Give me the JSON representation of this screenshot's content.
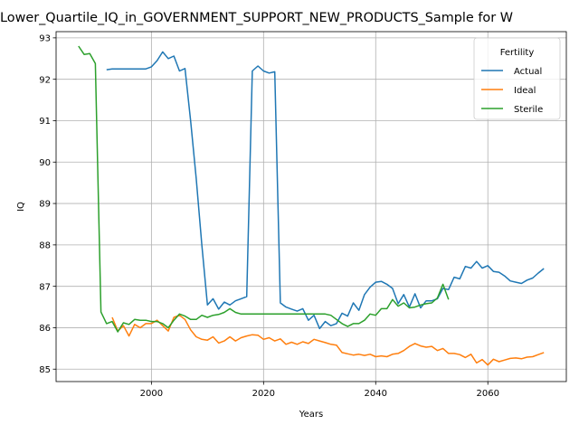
{
  "chart_data": {
    "type": "line",
    "title": "Lower_Quartile_IQ_in_GOVERNMENT_SUPPORT_NEW_PRODUCTS_Sample for W",
    "xlabel": "Years",
    "ylabel": "IQ",
    "xlim": [
      1983,
      2074
    ],
    "ylim": [
      84.7,
      93.15
    ],
    "x_ticks": [
      2000,
      2020,
      2040,
      2060
    ],
    "y_ticks": [
      85,
      86,
      87,
      88,
      89,
      90,
      91,
      92,
      93
    ],
    "grid": true,
    "legend": {
      "title": "Fertility",
      "placement": "top-right"
    },
    "series": [
      {
        "name": "Actual",
        "color": "#1f77b4",
        "points": [
          [
            1992,
            92.23
          ],
          [
            1993,
            92.25
          ],
          [
            1994,
            92.25
          ],
          [
            1995,
            92.25
          ],
          [
            1996,
            92.25
          ],
          [
            1997,
            92.25
          ],
          [
            1998,
            92.25
          ],
          [
            1999,
            92.25
          ],
          [
            2000,
            92.3
          ],
          [
            2001,
            92.45
          ],
          [
            2002,
            92.66
          ],
          [
            2003,
            92.5
          ],
          [
            2004,
            92.56
          ],
          [
            2005,
            92.2
          ],
          [
            2006,
            92.26
          ],
          [
            2007,
            91.0
          ],
          [
            2008,
            89.6
          ],
          [
            2009,
            88.0
          ],
          [
            2010,
            86.55
          ],
          [
            2011,
            86.7
          ],
          [
            2012,
            86.45
          ],
          [
            2013,
            86.62
          ],
          [
            2014,
            86.55
          ],
          [
            2015,
            86.65
          ],
          [
            2016,
            86.7
          ],
          [
            2017,
            86.75
          ],
          [
            2018,
            92.2
          ],
          [
            2019,
            92.32
          ],
          [
            2020,
            92.2
          ],
          [
            2021,
            92.15
          ],
          [
            2022,
            92.18
          ],
          [
            2023,
            86.6
          ],
          [
            2024,
            86.5
          ],
          [
            2025,
            86.45
          ],
          [
            2026,
            86.4
          ],
          [
            2027,
            86.46
          ],
          [
            2028,
            86.18
          ],
          [
            2029,
            86.3
          ],
          [
            2030,
            85.98
          ],
          [
            2031,
            86.15
          ],
          [
            2032,
            86.05
          ],
          [
            2033,
            86.1
          ],
          [
            2034,
            86.35
          ],
          [
            2035,
            86.28
          ],
          [
            2036,
            86.6
          ],
          [
            2037,
            86.42
          ],
          [
            2038,
            86.8
          ],
          [
            2039,
            86.98
          ],
          [
            2040,
            87.1
          ],
          [
            2041,
            87.12
          ],
          [
            2042,
            87.05
          ],
          [
            2043,
            86.95
          ],
          [
            2044,
            86.58
          ],
          [
            2045,
            86.8
          ],
          [
            2046,
            86.5
          ],
          [
            2047,
            86.82
          ],
          [
            2048,
            86.48
          ],
          [
            2049,
            86.65
          ],
          [
            2050,
            86.65
          ],
          [
            2051,
            86.7
          ],
          [
            2052,
            86.95
          ],
          [
            2053,
            86.92
          ],
          [
            2054,
            87.22
          ],
          [
            2055,
            87.18
          ],
          [
            2056,
            87.48
          ],
          [
            2057,
            87.44
          ],
          [
            2058,
            87.6
          ],
          [
            2059,
            87.44
          ],
          [
            2060,
            87.5
          ],
          [
            2061,
            87.36
          ],
          [
            2062,
            87.34
          ],
          [
            2063,
            87.25
          ],
          [
            2064,
            87.13
          ],
          [
            2065,
            87.1
          ],
          [
            2066,
            87.07
          ],
          [
            2067,
            87.15
          ],
          [
            2068,
            87.2
          ],
          [
            2069,
            87.32
          ],
          [
            2070,
            87.43
          ]
        ]
      },
      {
        "name": "Ideal",
        "color": "#ff7f0e",
        "points": [
          [
            1993,
            86.25
          ],
          [
            1994,
            85.92
          ],
          [
            1995,
            86.05
          ],
          [
            1996,
            85.8
          ],
          [
            1997,
            86.08
          ],
          [
            1998,
            86.0
          ],
          [
            1999,
            86.1
          ],
          [
            2000,
            86.1
          ],
          [
            2001,
            86.18
          ],
          [
            2002,
            86.05
          ],
          [
            2003,
            85.92
          ],
          [
            2004,
            86.25
          ],
          [
            2005,
            86.3
          ],
          [
            2006,
            86.2
          ],
          [
            2007,
            85.95
          ],
          [
            2008,
            85.78
          ],
          [
            2009,
            85.72
          ],
          [
            2010,
            85.7
          ],
          [
            2011,
            85.78
          ],
          [
            2012,
            85.63
          ],
          [
            2013,
            85.68
          ],
          [
            2014,
            85.78
          ],
          [
            2015,
            85.68
          ],
          [
            2016,
            85.76
          ],
          [
            2017,
            85.8
          ],
          [
            2018,
            85.83
          ],
          [
            2019,
            85.82
          ],
          [
            2020,
            85.72
          ],
          [
            2021,
            85.76
          ],
          [
            2022,
            85.68
          ],
          [
            2023,
            85.73
          ],
          [
            2024,
            85.6
          ],
          [
            2025,
            85.65
          ],
          [
            2026,
            85.6
          ],
          [
            2027,
            85.66
          ],
          [
            2028,
            85.62
          ],
          [
            2029,
            85.72
          ],
          [
            2030,
            85.68
          ],
          [
            2031,
            85.64
          ],
          [
            2032,
            85.6
          ],
          [
            2033,
            85.58
          ],
          [
            2034,
            85.4
          ],
          [
            2035,
            85.37
          ],
          [
            2036,
            85.34
          ],
          [
            2037,
            85.36
          ],
          [
            2038,
            85.33
          ],
          [
            2039,
            85.36
          ],
          [
            2040,
            85.3
          ],
          [
            2041,
            85.32
          ],
          [
            2042,
            85.3
          ],
          [
            2043,
            85.36
          ],
          [
            2044,
            85.38
          ],
          [
            2045,
            85.45
          ],
          [
            2046,
            85.55
          ],
          [
            2047,
            85.62
          ],
          [
            2048,
            85.56
          ],
          [
            2049,
            85.53
          ],
          [
            2050,
            85.55
          ],
          [
            2051,
            85.45
          ],
          [
            2052,
            85.5
          ],
          [
            2053,
            85.38
          ],
          [
            2054,
            85.38
          ],
          [
            2055,
            85.35
          ],
          [
            2056,
            85.28
          ],
          [
            2057,
            85.36
          ],
          [
            2058,
            85.15
          ],
          [
            2059,
            85.23
          ],
          [
            2060,
            85.1
          ],
          [
            2061,
            85.24
          ],
          [
            2062,
            85.18
          ],
          [
            2063,
            85.22
          ],
          [
            2064,
            85.26
          ],
          [
            2065,
            85.27
          ],
          [
            2066,
            85.25
          ],
          [
            2067,
            85.29
          ],
          [
            2068,
            85.3
          ],
          [
            2069,
            85.35
          ],
          [
            2070,
            85.4
          ]
        ]
      },
      {
        "name": "Sterile",
        "color": "#2ca02c",
        "points": [
          [
            1987,
            92.8
          ],
          [
            1988,
            92.6
          ],
          [
            1989,
            92.62
          ],
          [
            1990,
            92.38
          ],
          [
            1991,
            86.38
          ],
          [
            1992,
            86.1
          ],
          [
            1993,
            86.15
          ],
          [
            1994,
            85.9
          ],
          [
            1995,
            86.12
          ],
          [
            1996,
            86.08
          ],
          [
            1997,
            86.2
          ],
          [
            1998,
            86.18
          ],
          [
            1999,
            86.18
          ],
          [
            2000,
            86.15
          ],
          [
            2001,
            86.15
          ],
          [
            2002,
            86.1
          ],
          [
            2003,
            86.0
          ],
          [
            2004,
            86.18
          ],
          [
            2005,
            86.33
          ],
          [
            2006,
            86.28
          ],
          [
            2007,
            86.2
          ],
          [
            2008,
            86.2
          ],
          [
            2009,
            86.3
          ],
          [
            2010,
            86.25
          ],
          [
            2011,
            86.3
          ],
          [
            2012,
            86.32
          ],
          [
            2013,
            86.37
          ],
          [
            2014,
            86.46
          ],
          [
            2015,
            86.37
          ],
          [
            2016,
            86.33
          ],
          [
            2017,
            86.33
          ],
          [
            2018,
            86.33
          ],
          [
            2019,
            86.33
          ],
          [
            2020,
            86.33
          ],
          [
            2021,
            86.33
          ],
          [
            2022,
            86.33
          ],
          [
            2023,
            86.33
          ],
          [
            2024,
            86.33
          ],
          [
            2025,
            86.33
          ],
          [
            2026,
            86.33
          ],
          [
            2027,
            86.33
          ],
          [
            2028,
            86.33
          ],
          [
            2029,
            86.33
          ],
          [
            2030,
            86.33
          ],
          [
            2031,
            86.33
          ],
          [
            2032,
            86.3
          ],
          [
            2033,
            86.2
          ],
          [
            2034,
            86.1
          ],
          [
            2035,
            86.03
          ],
          [
            2036,
            86.1
          ],
          [
            2037,
            86.1
          ],
          [
            2038,
            86.18
          ],
          [
            2039,
            86.33
          ],
          [
            2040,
            86.3
          ],
          [
            2041,
            86.46
          ],
          [
            2042,
            86.46
          ],
          [
            2043,
            86.68
          ],
          [
            2044,
            86.52
          ],
          [
            2045,
            86.6
          ],
          [
            2046,
            86.48
          ],
          [
            2047,
            86.5
          ],
          [
            2048,
            86.55
          ],
          [
            2049,
            86.58
          ],
          [
            2050,
            86.6
          ],
          [
            2051,
            86.72
          ],
          [
            2052,
            87.05
          ],
          [
            2053,
            86.68
          ]
        ]
      }
    ]
  }
}
